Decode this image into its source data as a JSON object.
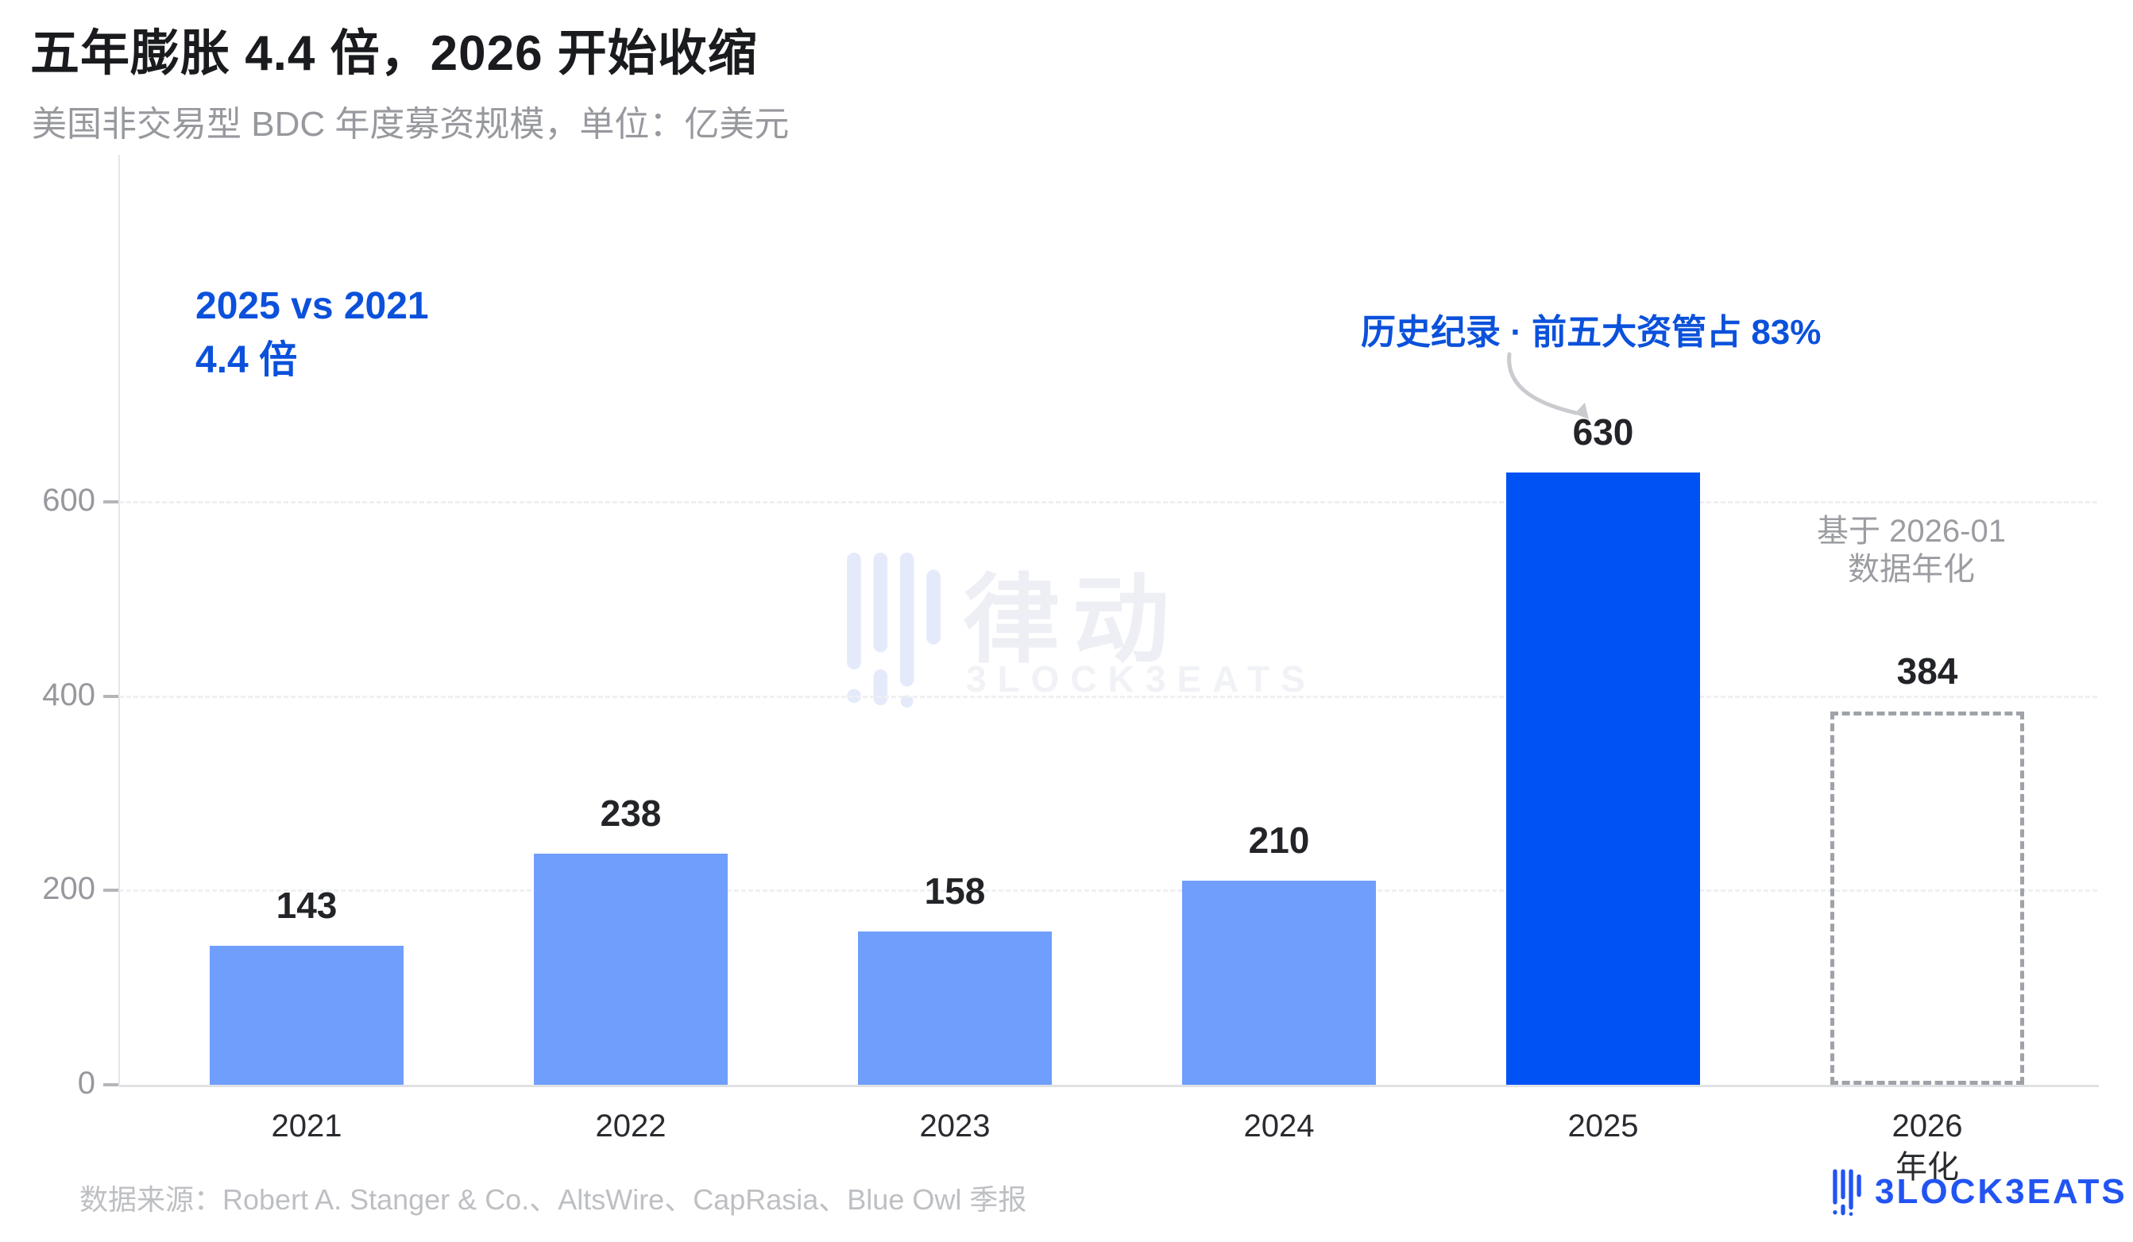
{
  "header": {
    "title": "五年膨胀 4.4 倍，2026 开始收缩",
    "subtitle": "美国非交易型 BDC 年度募资规模，单位：亿美元"
  },
  "annotations": {
    "ratio_line1": "2025 vs 2021",
    "ratio_line2": "4.4 倍",
    "record_callout": "历史纪录 · 前五大资管占 83%",
    "annualized_line1": "基于 2026-01",
    "annualized_line2": "数据年化"
  },
  "chart_data": {
    "type": "bar",
    "title": "五年膨胀 4.4 倍，2026 开始收缩",
    "subtitle": "美国非交易型 BDC 年度募资规模，单位：亿美元",
    "unit": "亿美元",
    "categories": [
      "2021",
      "2022",
      "2023",
      "2024",
      "2025",
      "2026"
    ],
    "values": [
      143,
      238,
      158,
      210,
      630,
      384
    ],
    "x_sublabels": [
      "",
      "",
      "",
      "",
      "",
      "年化"
    ],
    "bar_styles": [
      "light",
      "light",
      "light",
      "light",
      "highlight",
      "dashed"
    ],
    "xlabel": "",
    "ylabel": "亿美元",
    "yticks": [
      0,
      200,
      400,
      600
    ],
    "ylim": [
      0,
      750
    ],
    "grid": "horizontal dashed",
    "legend": "none",
    "colors": {
      "bar_light": "#6f9efc",
      "bar_highlight": "#0052f5",
      "bar_dashed_border": "#9fa2a9",
      "accent_text_blue": "#0b51db",
      "value_label": "#222428",
      "axis_text": "#96989d",
      "logo_blue": "#2254f2"
    }
  },
  "watermark": {
    "cn": "律动",
    "en": "BLOCKBEATS"
  },
  "footer": {
    "source": "数据来源：Robert A. Stanger & Co.、AltsWire、CapRasia、Blue Owl 季报",
    "logo_text": "BLOCKBEATS"
  }
}
